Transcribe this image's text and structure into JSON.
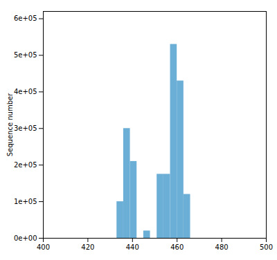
{
  "chart_data": {
    "type": "bar",
    "x": [
      433,
      436,
      439,
      445,
      451,
      454,
      457,
      460,
      463,
      466
    ],
    "values": [
      100000,
      300000,
      210000,
      20000,
      175000,
      175000,
      530000,
      430000,
      120000,
      0
    ],
    "bar_width": 3,
    "color": "#6baed6",
    "ylabel": "Sequence number",
    "xlim": [
      400,
      500
    ],
    "ylim": [
      0,
      620000
    ],
    "xticks": [
      400,
      420,
      440,
      460,
      480,
      500
    ],
    "yticks": [
      {
        "value": 0,
        "label": "0e+00"
      },
      {
        "value": 100000,
        "label": "1e+05"
      },
      {
        "value": 200000,
        "label": "2e+05"
      },
      {
        "value": 300000,
        "label": "3e+05"
      },
      {
        "value": 400000,
        "label": "4e+05"
      },
      {
        "value": 500000,
        "label": "5e+05"
      },
      {
        "value": 600000,
        "label": "6e+05"
      }
    ],
    "grid": false
  }
}
